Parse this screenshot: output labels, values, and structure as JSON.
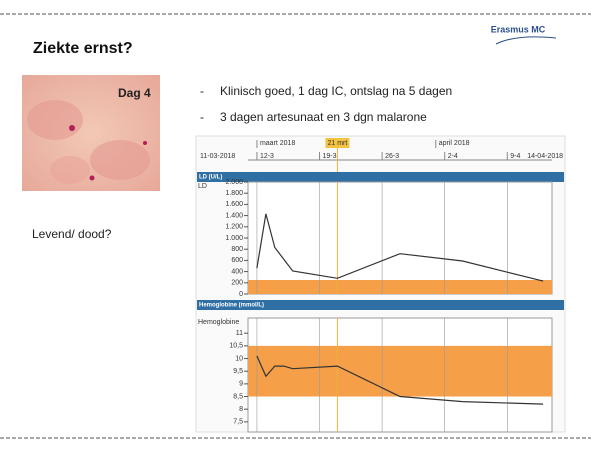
{
  "slide": {
    "title": "Ziekte ernst?",
    "logo": "Erasmus MC",
    "image_label": "Dag 4",
    "question": "Levend/ dood?",
    "bullets": [
      "Klinisch goed, 1 dag IC, ontslag na 5 dagen",
      "3 dagen artesunaat en 3 dgn malarone"
    ]
  },
  "timeline": {
    "xlim": [
      {
        "value": "2018-03-11",
        "label": "11-03-2018"
      },
      {
        "value": "2018-04-14",
        "label": "14-04-2018"
      }
    ],
    "xticks": [
      {
        "value": "2018-03-12",
        "label": "12-3"
      },
      {
        "value": "2018-03-19",
        "label": "19-3"
      },
      {
        "value": "2018-03-26",
        "label": "26-3"
      },
      {
        "value": "2018-04-02",
        "label": "2-4"
      },
      {
        "value": "2018-04-09",
        "label": "9-4"
      }
    ],
    "months": [
      {
        "value": "2018-03-12",
        "label": "maart 2018"
      },
      {
        "value": "2018-04-01",
        "label": "april 2018"
      }
    ],
    "marker": {
      "value": "2018-03-21",
      "label": "21 mrt"
    }
  },
  "chart_data": [
    {
      "type": "line",
      "title": "LD (U/L)",
      "y_label": "LD",
      "color": "#333333",
      "x": [
        "2018-03-12",
        "2018-03-13",
        "2018-03-14",
        "2018-03-16",
        "2018-03-21",
        "2018-03-28",
        "2018-04-04",
        "2018-04-09",
        "2018-04-13"
      ],
      "values": [
        460,
        1430,
        830,
        410,
        280,
        720,
        590,
        390,
        230
      ],
      "ylim": [
        0,
        2000
      ],
      "yticks": [
        0,
        200,
        400,
        600,
        800,
        {
          "value": 1000,
          "label": "1.000"
        },
        {
          "value": 1200,
          "label": "1.200"
        },
        {
          "value": 1400,
          "label": "1.400"
        },
        {
          "value": 1600,
          "label": "1.600"
        },
        {
          "value": 1800,
          "label": "1.800"
        },
        {
          "value": 2000,
          "label": "2.000"
        }
      ],
      "band": {
        "from": 0,
        "to": 250,
        "color": "#f5a049"
      }
    },
    {
      "type": "line",
      "title": "Hemoglobine (mmol/L)",
      "y_label": "Hemoglobine",
      "color": "#333333",
      "x": [
        "2018-03-12",
        "2018-03-13",
        "2018-03-14",
        "2018-03-15",
        "2018-03-16",
        "2018-03-21",
        "2018-03-28",
        "2018-04-04",
        "2018-04-13"
      ],
      "values": [
        10.1,
        9.3,
        9.7,
        9.7,
        9.6,
        9.7,
        8.5,
        8.3,
        8.2
      ],
      "ylim": [
        7.1,
        11.6
      ],
      "yticks": [
        {
          "value": 7.5,
          "label": "7,5"
        },
        8,
        {
          "value": 8.5,
          "label": "8,5"
        },
        9,
        {
          "value": 9.5,
          "label": "9,5"
        },
        10,
        {
          "value": 10.5,
          "label": "10,5"
        },
        11
      ],
      "band": {
        "from": 8.5,
        "to": 10.5,
        "color": "#f5a049"
      }
    }
  ]
}
